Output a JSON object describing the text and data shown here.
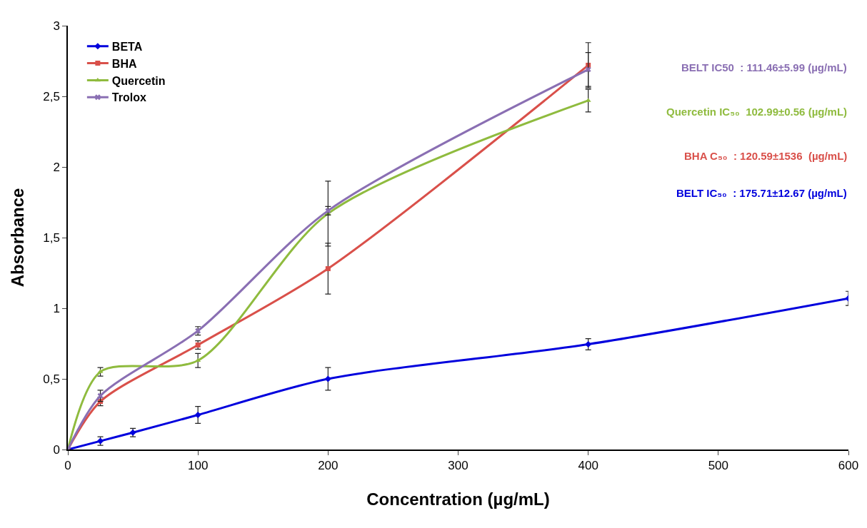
{
  "chart_data": {
    "type": "line",
    "xlabel": "Concentration (µg/mL)",
    "ylabel": "Absorbance",
    "series": [
      {
        "name": "BETA",
        "color": "#0000dd",
        "marker": "diamond",
        "x": [
          0,
          25,
          50,
          100,
          200,
          400,
          600
        ],
        "values": [
          0,
          0.06,
          0.12,
          0.245,
          0.5,
          0.745,
          1.07
        ],
        "errors": [
          null,
          0.03,
          0.03,
          0.06,
          0.08,
          0.04,
          0.05
        ]
      },
      {
        "name": "BHA",
        "color": "#d9504a",
        "marker": "square",
        "x": [
          0,
          25,
          100,
          200,
          400
        ],
        "values": [
          0,
          0.34,
          0.74,
          1.28,
          2.72
        ],
        "errors": [
          null,
          0.03,
          0.03,
          0.18,
          0.16
        ]
      },
      {
        "name": "Quercetin",
        "color": "#8fbb3e",
        "marker": "triangle",
        "x": [
          0,
          25,
          100,
          200,
          400
        ],
        "values": [
          0,
          0.55,
          0.63,
          1.67,
          2.47
        ],
        "errors": [
          null,
          0.03,
          0.05,
          0.23,
          0.08
        ]
      },
      {
        "name": "Trolox",
        "color": "#8a6fb3",
        "marker": "cross",
        "x": [
          0,
          25,
          100,
          200,
          400
        ],
        "values": [
          0,
          0.38,
          0.84,
          1.69,
          2.69
        ],
        "errors": [
          null,
          0.04,
          0.03,
          0.03,
          0.12
        ]
      }
    ],
    "xlim": [
      0,
      600
    ],
    "xticks": [
      0,
      100,
      200,
      300,
      400,
      500,
      600
    ],
    "ylim": [
      0,
      3
    ],
    "yticks": [
      0,
      {
        "value": 0.5,
        "label": "0,5"
      },
      1,
      {
        "value": 1.5,
        "label": "1,5"
      },
      2,
      {
        "value": 2.5,
        "label": "2,5"
      },
      3
    ],
    "grid": false,
    "legend": "top left",
    "line_style": "solid",
    "annotations": [
      "BELT IC50  : 111.46±5.99 (µg/mL)",
      "Quercetin IC₅₀  102.99±0.56 (µg/mL)",
      "BHA C₅₀  : 120.59±1536  (µg/mL)",
      "BELT IC₅₀  : 175.71±12.67 (µg/mL)"
    ]
  }
}
